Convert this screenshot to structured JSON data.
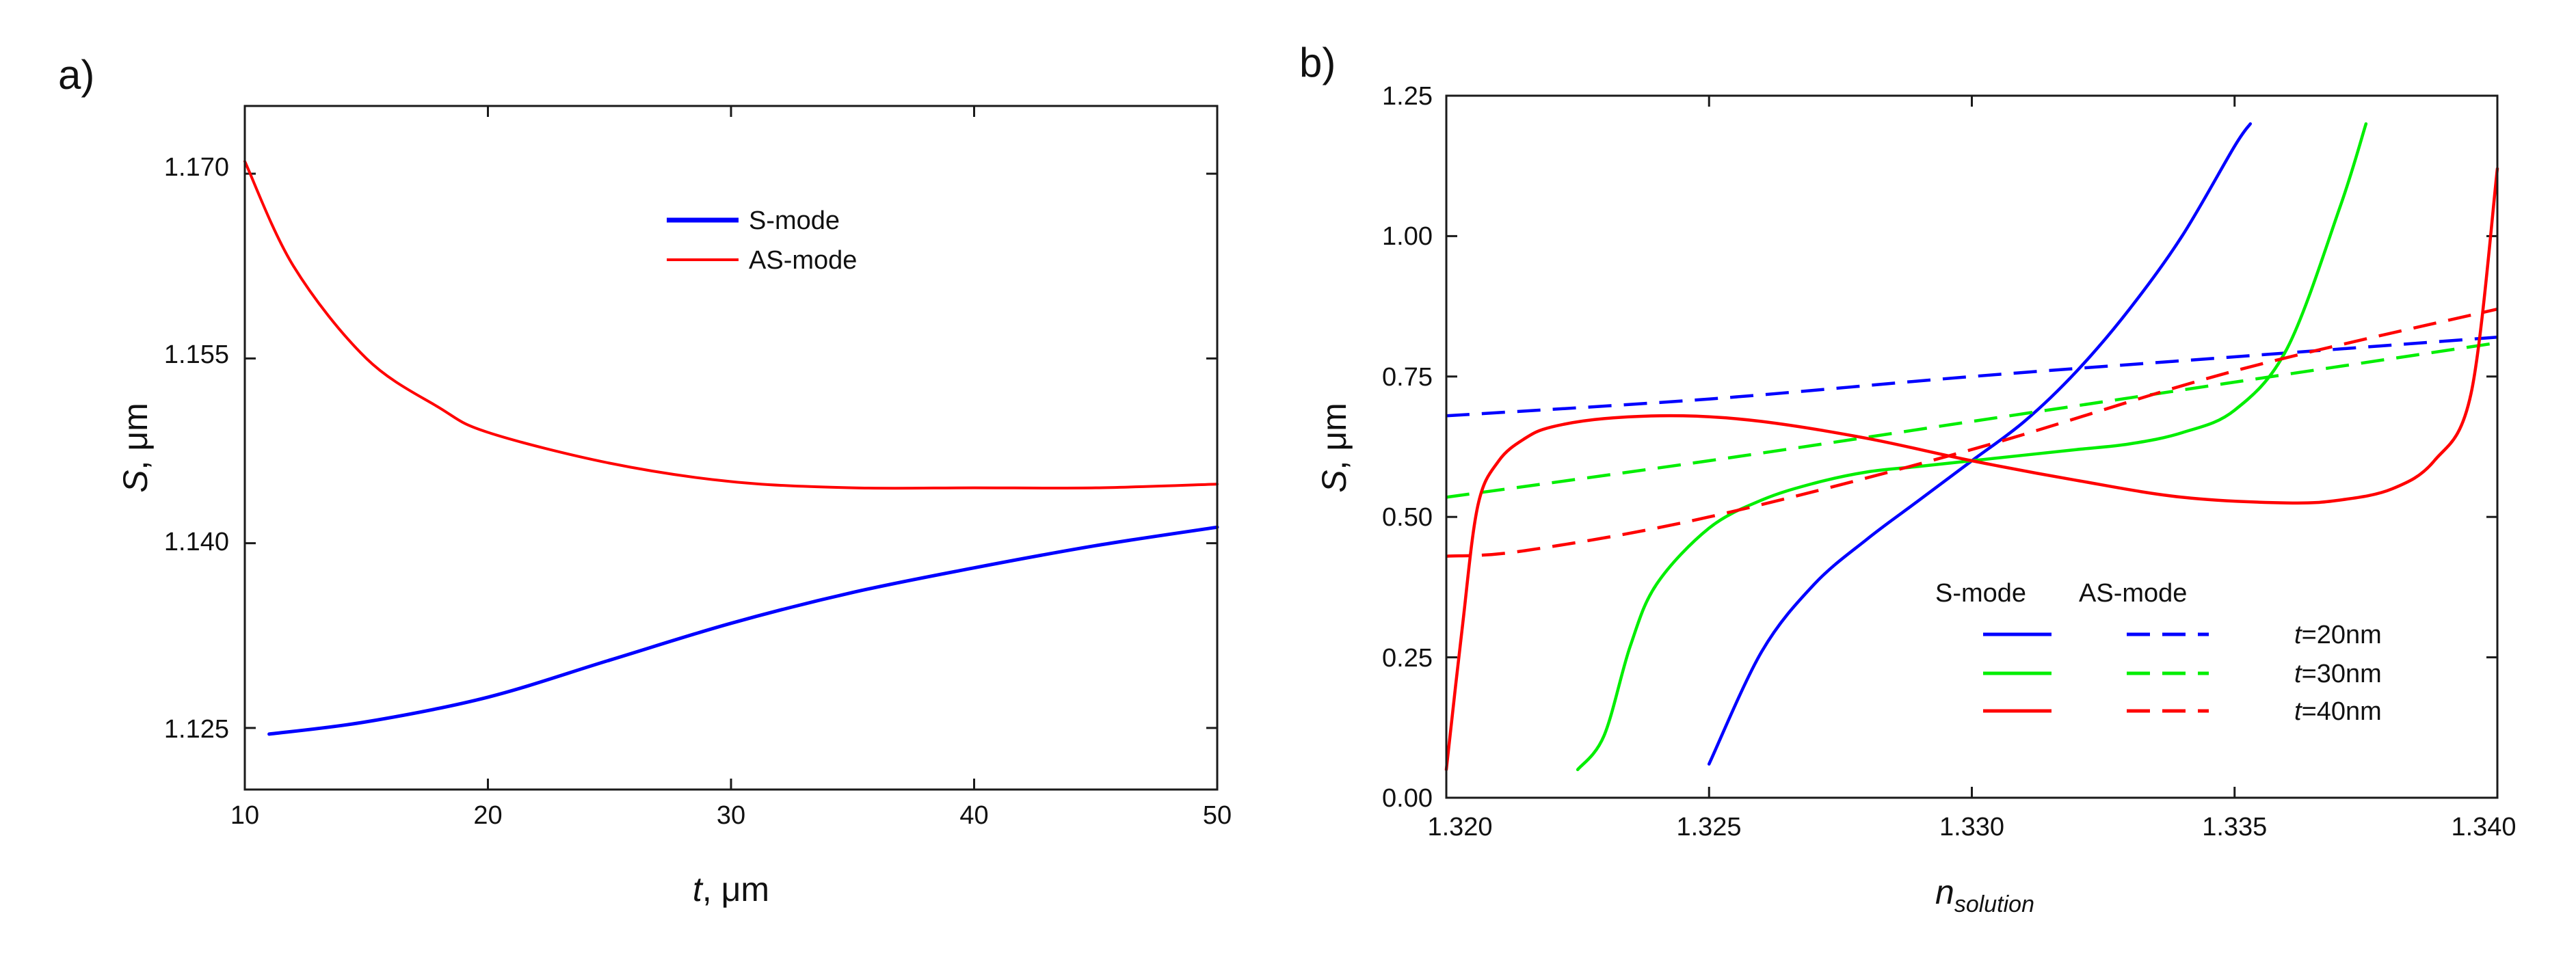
{
  "chart_data": [
    {
      "panel_label": "a)",
      "type": "line",
      "xlabel": {
        "symbol": "t",
        "unit": ", μm"
      },
      "ylabel": {
        "symbol": "S",
        "unit": ", μm"
      },
      "xlim": [
        10,
        50
      ],
      "ylim": [
        1.12,
        1.1755
      ],
      "x_ticks": [
        10,
        20,
        30,
        40,
        50
      ],
      "x_tick_labels": [
        "10",
        "20",
        "30",
        "40",
        "50"
      ],
      "y_ticks": [
        1.125,
        1.14,
        1.155,
        1.17
      ],
      "y_tick_labels": [
        "1.125",
        "1.140",
        "1.155",
        "1.170"
      ],
      "legend_position": "top-center",
      "series": [
        {
          "name": "S-mode",
          "color": "#0000ff",
          "style": "solid",
          "x": [
            11,
            15,
            20,
            25,
            30,
            35,
            40,
            45,
            50
          ],
          "y": [
            1.1245,
            1.1255,
            1.1275,
            1.1305,
            1.1335,
            1.136,
            1.138,
            1.1398,
            1.1413
          ]
        },
        {
          "name": "AS-mode",
          "color": "#ff0000",
          "style": "solid",
          "x": [
            10,
            12,
            15,
            18,
            20,
            25,
            30,
            35,
            40,
            45,
            50
          ],
          "y": [
            1.171,
            1.1625,
            1.155,
            1.151,
            1.149,
            1.1465,
            1.145,
            1.1445,
            1.1445,
            1.1445,
            1.1448
          ]
        }
      ]
    },
    {
      "panel_label": "b)",
      "type": "line",
      "xlabel": {
        "symbol": "n",
        "subscript": "solution"
      },
      "ylabel": {
        "symbol": "S",
        "unit": ", μm"
      },
      "xlim": [
        1.32,
        1.34
      ],
      "ylim": [
        0,
        1.25
      ],
      "x_ticks": [
        1.32,
        1.325,
        1.33,
        1.335,
        1.34
      ],
      "x_tick_labels": [
        "1.320",
        "1.325",
        "1.330",
        "1.335",
        "1.340"
      ],
      "y_ticks": [
        0,
        0.25,
        0.5,
        0.75,
        1.0,
        1.25
      ],
      "y_tick_labels": [
        "0.00",
        "0.25",
        "0.50",
        "0.75",
        "1.00",
        "1.25"
      ],
      "legend_position": "bottom-right",
      "legend_headers": [
        "S-mode",
        "AS-mode"
      ],
      "legend_rows": [
        {
          "prefix": "t",
          "label": "=20nm",
          "color": "#0000ff"
        },
        {
          "prefix": "t",
          "label": "=30nm",
          "color": "#00ee00"
        },
        {
          "prefix": "t",
          "label": "=40nm",
          "color": "#ff0000"
        }
      ],
      "series": [
        {
          "name": "S-mode t=20nm",
          "color": "#0000ff",
          "style": "solid",
          "x": [
            1.325,
            1.326,
            1.327,
            1.328,
            1.329,
            1.33,
            1.331,
            1.332,
            1.333,
            1.334,
            1.335,
            1.3353
          ],
          "y": [
            0.06,
            0.26,
            0.38,
            0.46,
            0.53,
            0.6,
            0.67,
            0.76,
            0.87,
            1.0,
            1.16,
            1.2
          ]
        },
        {
          "name": "AS-mode t=20nm",
          "color": "#0000ff",
          "style": "dashed",
          "x": [
            1.32,
            1.325,
            1.33,
            1.335,
            1.34
          ],
          "y": [
            0.68,
            0.71,
            0.75,
            0.785,
            0.82
          ]
        },
        {
          "name": "S-mode t=30nm",
          "color": "#00ee00",
          "style": "solid",
          "x": [
            1.3225,
            1.323,
            1.3235,
            1.324,
            1.325,
            1.326,
            1.327,
            1.328,
            1.329,
            1.33,
            1.331,
            1.332,
            1.333,
            1.334,
            1.335,
            1.336,
            1.337,
            1.3375
          ],
          "y": [
            0.05,
            0.11,
            0.27,
            0.38,
            0.48,
            0.53,
            0.56,
            0.58,
            0.59,
            0.6,
            0.61,
            0.62,
            0.63,
            0.65,
            0.69,
            0.8,
            1.05,
            1.2
          ]
        },
        {
          "name": "AS-mode t=30nm",
          "color": "#00ee00",
          "style": "dashed",
          "x": [
            1.32,
            1.325,
            1.33,
            1.335,
            1.34
          ],
          "y": [
            0.535,
            0.6,
            0.67,
            0.74,
            0.81
          ]
        },
        {
          "name": "S-mode t=40nm",
          "color": "#ff0000",
          "style": "solid",
          "x": [
            1.32,
            1.3203,
            1.3206,
            1.321,
            1.3215,
            1.322,
            1.323,
            1.3245,
            1.326,
            1.328,
            1.33,
            1.332,
            1.334,
            1.336,
            1.337,
            1.338,
            1.3388,
            1.3395,
            1.34
          ],
          "y": [
            0.05,
            0.3,
            0.52,
            0.6,
            0.64,
            0.66,
            0.675,
            0.68,
            0.67,
            0.64,
            0.6,
            0.565,
            0.535,
            0.525,
            0.53,
            0.55,
            0.6,
            0.72,
            1.12
          ]
        },
        {
          "name": "AS-mode t=40nm",
          "color": "#ff0000",
          "style": "dashed",
          "x": [
            1.32,
            1.3215,
            1.325,
            1.33,
            1.335,
            1.34
          ],
          "y": [
            0.43,
            0.44,
            0.5,
            0.62,
            0.76,
            0.87
          ]
        }
      ]
    }
  ]
}
